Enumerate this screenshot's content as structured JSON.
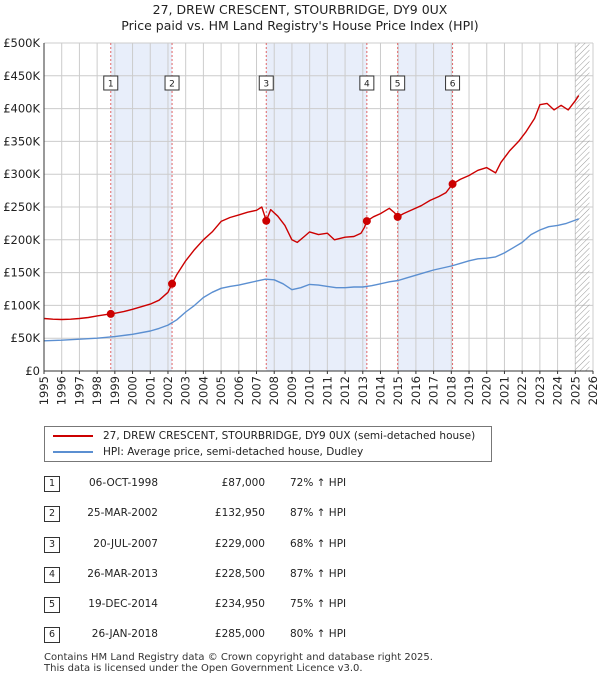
{
  "title_line1": "27, DREW CRESCENT, STOURBRIDGE, DY9 0UX",
  "title_line2": "Price paid vs. HM Land Registry's House Price Index (HPI)",
  "colors": {
    "property": "#cc0000",
    "hpi": "#5b8fd1",
    "shade": "#e8eefa",
    "grid": "#cccccc",
    "vline": "#e06666"
  },
  "chart_data": {
    "type": "line",
    "x_range": [
      1995,
      2026
    ],
    "ylim": [
      0,
      500000
    ],
    "y_ticks": [
      {
        "value": 0,
        "label": "£0"
      },
      {
        "value": 50000,
        "label": "£50K"
      },
      {
        "value": 100000,
        "label": "£100K"
      },
      {
        "value": 150000,
        "label": "£150K"
      },
      {
        "value": 200000,
        "label": "£200K"
      },
      {
        "value": 250000,
        "label": "£250K"
      },
      {
        "value": 300000,
        "label": "£300K"
      },
      {
        "value": 350000,
        "label": "£350K"
      },
      {
        "value": 400000,
        "label": "£400K"
      },
      {
        "value": 450000,
        "label": "£450K"
      },
      {
        "value": 500000,
        "label": "£500K"
      }
    ],
    "x_ticks": [
      "1995",
      "1996",
      "1997",
      "1998",
      "1999",
      "2000",
      "2001",
      "2002",
      "2003",
      "2004",
      "2005",
      "2006",
      "2007",
      "2008",
      "2009",
      "2010",
      "2011",
      "2012",
      "2013",
      "2014",
      "2015",
      "2016",
      "2017",
      "2018",
      "2019",
      "2020",
      "2021",
      "2022",
      "2023",
      "2024",
      "2025",
      "2026"
    ],
    "shaded_ranges": [
      [
        1998.77,
        2002.23
      ],
      [
        2007.55,
        2013.23
      ],
      [
        2014.97,
        2018.07
      ]
    ],
    "future_hatch_start": 2025.0,
    "series": [
      {
        "name": "27, DREW CRESCENT, STOURBRIDGE, DY9 0UX (semi-detached house)",
        "points": [
          [
            1995.0,
            80000
          ],
          [
            1995.5,
            79000
          ],
          [
            1996.0,
            78500
          ],
          [
            1996.5,
            79000
          ],
          [
            1997.0,
            80000
          ],
          [
            1997.5,
            81500
          ],
          [
            1998.0,
            84000
          ],
          [
            1998.5,
            86000
          ],
          [
            1998.77,
            87000
          ],
          [
            1999.0,
            88000
          ],
          [
            1999.5,
            90500
          ],
          [
            2000.0,
            94000
          ],
          [
            2000.5,
            98000
          ],
          [
            2001.0,
            102000
          ],
          [
            2001.5,
            108000
          ],
          [
            2002.0,
            120000
          ],
          [
            2002.23,
            132950
          ],
          [
            2002.5,
            147000
          ],
          [
            2003.0,
            168000
          ],
          [
            2003.5,
            185000
          ],
          [
            2004.0,
            200000
          ],
          [
            2004.5,
            212000
          ],
          [
            2005.0,
            228000
          ],
          [
            2005.5,
            234000
          ],
          [
            2006.0,
            238000
          ],
          [
            2006.5,
            242000
          ],
          [
            2007.0,
            245000
          ],
          [
            2007.3,
            250000
          ],
          [
            2007.55,
            229000
          ],
          [
            2007.8,
            246000
          ],
          [
            2008.2,
            236000
          ],
          [
            2008.6,
            222000
          ],
          [
            2009.0,
            200000
          ],
          [
            2009.3,
            196000
          ],
          [
            2009.7,
            205000
          ],
          [
            2010.0,
            212000
          ],
          [
            2010.5,
            208000
          ],
          [
            2011.0,
            210000
          ],
          [
            2011.4,
            200000
          ],
          [
            2012.0,
            204000
          ],
          [
            2012.5,
            205000
          ],
          [
            2012.9,
            210000
          ],
          [
            2013.1,
            219000
          ],
          [
            2013.23,
            228500
          ],
          [
            2013.6,
            235000
          ],
          [
            2014.0,
            240000
          ],
          [
            2014.5,
            248000
          ],
          [
            2014.8,
            241000
          ],
          [
            2014.97,
            234950
          ],
          [
            2015.3,
            240000
          ],
          [
            2015.8,
            246000
          ],
          [
            2016.3,
            252000
          ],
          [
            2016.8,
            260000
          ],
          [
            2017.3,
            266000
          ],
          [
            2017.7,
            272000
          ],
          [
            2018.07,
            285000
          ],
          [
            2018.5,
            292000
          ],
          [
            2019.0,
            298000
          ],
          [
            2019.5,
            306000
          ],
          [
            2020.0,
            310000
          ],
          [
            2020.5,
            302000
          ],
          [
            2020.8,
            318000
          ],
          [
            2021.3,
            336000
          ],
          [
            2021.8,
            350000
          ],
          [
            2022.2,
            364000
          ],
          [
            2022.7,
            385000
          ],
          [
            2023.0,
            406000
          ],
          [
            2023.4,
            408000
          ],
          [
            2023.8,
            398000
          ],
          [
            2024.2,
            405000
          ],
          [
            2024.6,
            398000
          ],
          [
            2025.0,
            412000
          ],
          [
            2025.2,
            420000
          ]
        ]
      },
      {
        "name": "HPI: Average price, semi-detached house, Dudley",
        "points": [
          [
            1995.0,
            46000
          ],
          [
            1996.0,
            47000
          ],
          [
            1997.0,
            48500
          ],
          [
            1998.0,
            50000
          ],
          [
            1999.0,
            52500
          ],
          [
            2000.0,
            56000
          ],
          [
            2001.0,
            61000
          ],
          [
            2001.5,
            65000
          ],
          [
            2002.0,
            70000
          ],
          [
            2002.5,
            78000
          ],
          [
            2003.0,
            90000
          ],
          [
            2003.5,
            100000
          ],
          [
            2004.0,
            112000
          ],
          [
            2004.5,
            120000
          ],
          [
            2005.0,
            126000
          ],
          [
            2005.5,
            129000
          ],
          [
            2006.0,
            131000
          ],
          [
            2006.5,
            134000
          ],
          [
            2007.0,
            137000
          ],
          [
            2007.5,
            140000
          ],
          [
            2008.0,
            139000
          ],
          [
            2008.5,
            133000
          ],
          [
            2009.0,
            124000
          ],
          [
            2009.5,
            127000
          ],
          [
            2010.0,
            132000
          ],
          [
            2010.5,
            131000
          ],
          [
            2011.0,
            129000
          ],
          [
            2011.5,
            127000
          ],
          [
            2012.0,
            127000
          ],
          [
            2012.5,
            128000
          ],
          [
            2013.0,
            128000
          ],
          [
            2013.5,
            130000
          ],
          [
            2014.0,
            133000
          ],
          [
            2014.5,
            136000
          ],
          [
            2015.0,
            138000
          ],
          [
            2015.5,
            142000
          ],
          [
            2016.0,
            146000
          ],
          [
            2016.5,
            150000
          ],
          [
            2017.0,
            154000
          ],
          [
            2017.5,
            157000
          ],
          [
            2018.0,
            160000
          ],
          [
            2018.5,
            164000
          ],
          [
            2019.0,
            168000
          ],
          [
            2019.5,
            171000
          ],
          [
            2020.0,
            172000
          ],
          [
            2020.5,
            174000
          ],
          [
            2021.0,
            180000
          ],
          [
            2021.5,
            188000
          ],
          [
            2022.0,
            196000
          ],
          [
            2022.5,
            208000
          ],
          [
            2023.0,
            215000
          ],
          [
            2023.5,
            220000
          ],
          [
            2024.0,
            222000
          ],
          [
            2024.5,
            225000
          ],
          [
            2025.0,
            230000
          ],
          [
            2025.2,
            232000
          ]
        ]
      }
    ],
    "sales": [
      {
        "n": "1",
        "x": 1998.77,
        "value": 87000
      },
      {
        "n": "2",
        "x": 2002.23,
        "value": 132950
      },
      {
        "n": "3",
        "x": 2007.55,
        "value": 229000
      },
      {
        "n": "4",
        "x": 2013.23,
        "value": 228500
      },
      {
        "n": "5",
        "x": 2014.97,
        "value": 234950
      },
      {
        "n": "6",
        "x": 2018.07,
        "value": 285000
      }
    ]
  },
  "legend": {
    "property_label": "27, DREW CRESCENT, STOURBRIDGE, DY9 0UX (semi-detached house)",
    "hpi_label": "HPI: Average price, semi-detached house, Dudley"
  },
  "sales_table": [
    {
      "n": "1",
      "date": "06-OCT-1998",
      "price": "£87,000",
      "hpi": "72% ↑ HPI"
    },
    {
      "n": "2",
      "date": "25-MAR-2002",
      "price": "£132,950",
      "hpi": "87% ↑ HPI"
    },
    {
      "n": "3",
      "date": "20-JUL-2007",
      "price": "£229,000",
      "hpi": "68% ↑ HPI"
    },
    {
      "n": "4",
      "date": "26-MAR-2013",
      "price": "£228,500",
      "hpi": "87% ↑ HPI"
    },
    {
      "n": "5",
      "date": "19-DEC-2014",
      "price": "£234,950",
      "hpi": "75% ↑ HPI"
    },
    {
      "n": "6",
      "date": "26-JAN-2018",
      "price": "£285,000",
      "hpi": "80% ↑ HPI"
    }
  ],
  "footer_line1": "Contains HM Land Registry data © Crown copyright and database right 2025.",
  "footer_line2": "This data is licensed under the Open Government Licence v3.0."
}
